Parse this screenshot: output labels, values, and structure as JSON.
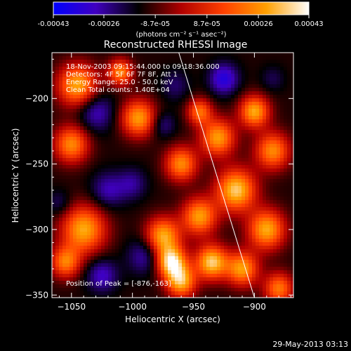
{
  "colorbar": {
    "tick_labels": [
      "-0.00043",
      "-0.00026",
      "-8.7e-05",
      "8.7e-05",
      "0.00026",
      "0.00043"
    ],
    "tick_values": [
      -0.00043,
      -0.00026,
      -8.7e-05,
      8.7e-05,
      0.00026,
      0.00043
    ],
    "range": [
      -0.00043,
      0.00043
    ],
    "unit_label": "(photons cm⁻² s⁻¹ asec⁻²)",
    "colors": [
      "#0000ff",
      "#4000c0",
      "#000000",
      "#b00000",
      "#ff4000",
      "#ffa000",
      "#ffffff"
    ]
  },
  "chart_data": {
    "type": "heatmap",
    "title": "Reconstructed RHESSI Image",
    "xlabel": "Heliocentric X (arcsec)",
    "ylabel": "Heliocentric Y (arcsec)",
    "xlim": [
      -1066,
      -868
    ],
    "ylim": [
      -352,
      -165
    ],
    "x_ticks": [
      -1050,
      -1000,
      -950,
      -900
    ],
    "x_tick_labels": [
      "−1050",
      "−1000",
      "−950",
      "−900"
    ],
    "y_ticks": [
      -200,
      -250,
      -300,
      -350
    ],
    "y_tick_labels": [
      "−200",
      "−250",
      "−300",
      "−350"
    ],
    "annotations": {
      "time_range": "18-Nov-2003 09:15:44.000 to 09:18:36.000",
      "detectors": "Detectors: 4F 5F 6F 7F 8F, Att 1",
      "energy": "Energy Range: 25.0 - 50.0 keV",
      "clean": "Clean    Total counts: 1.40E+04",
      "peak": "Position of Peak = [-876,-163]"
    },
    "limb_line": {
      "x": [
        -962,
        -900
      ],
      "y": [
        -165,
        -352
      ]
    },
    "blobs": [
      {
        "x": -1045,
        "y": -190,
        "r": 16,
        "v": 0.0003
      },
      {
        "x": -1050,
        "y": -235,
        "r": 14,
        "v": 0.00025
      },
      {
        "x": -1040,
        "y": -300,
        "r": 18,
        "v": 0.0003
      },
      {
        "x": -1055,
        "y": -325,
        "r": 12,
        "v": 0.00022
      },
      {
        "x": -1020,
        "y": -270,
        "r": 14,
        "v": -0.00028
      },
      {
        "x": -1030,
        "y": -210,
        "r": 15,
        "v": -0.0003
      },
      {
        "x": -1025,
        "y": -335,
        "r": 13,
        "v": -0.0003
      },
      {
        "x": -995,
        "y": -215,
        "r": 14,
        "v": 0.00028
      },
      {
        "x": -1000,
        "y": -265,
        "r": 12,
        "v": -0.00025
      },
      {
        "x": -990,
        "y": -320,
        "r": 14,
        "v": -0.00028
      },
      {
        "x": -975,
        "y": -305,
        "r": 14,
        "v": 0.0003
      },
      {
        "x": -968,
        "y": -325,
        "r": 12,
        "v": 0.00038
      },
      {
        "x": -960,
        "y": -250,
        "r": 13,
        "v": 0.00025
      },
      {
        "x": -965,
        "y": -190,
        "r": 12,
        "v": -0.00022
      },
      {
        "x": -960,
        "y": -340,
        "r": 12,
        "v": 0.0003
      },
      {
        "x": -945,
        "y": -290,
        "r": 14,
        "v": 0.00028
      },
      {
        "x": -935,
        "y": -325,
        "r": 13,
        "v": 0.00035
      },
      {
        "x": -930,
        "y": -230,
        "r": 14,
        "v": 0.00028
      },
      {
        "x": -925,
        "y": -185,
        "r": 12,
        "v": -0.00035
      },
      {
        "x": -915,
        "y": -270,
        "r": 16,
        "v": 0.00035
      },
      {
        "x": -900,
        "y": -210,
        "r": 12,
        "v": 0.0003
      },
      {
        "x": -885,
        "y": -240,
        "r": 14,
        "v": 0.00025
      },
      {
        "x": -890,
        "y": -300,
        "r": 15,
        "v": 0.0003
      },
      {
        "x": -910,
        "y": -330,
        "r": 13,
        "v": 0.00028
      },
      {
        "x": -880,
        "y": -345,
        "r": 12,
        "v": 0.00022
      },
      {
        "x": -1060,
        "y": -280,
        "r": 10,
        "v": -0.00022
      },
      {
        "x": -975,
        "y": -220,
        "r": 10,
        "v": -0.00025
      },
      {
        "x": -945,
        "y": -210,
        "r": 10,
        "v": 0.0002
      },
      {
        "x": -1010,
        "y": -180,
        "r": 10,
        "v": 0.00024
      },
      {
        "x": -885,
        "y": -185,
        "r": 10,
        "v": -0.0002
      }
    ]
  },
  "footer": {
    "timestamp": "29-May-2013 03:13"
  }
}
